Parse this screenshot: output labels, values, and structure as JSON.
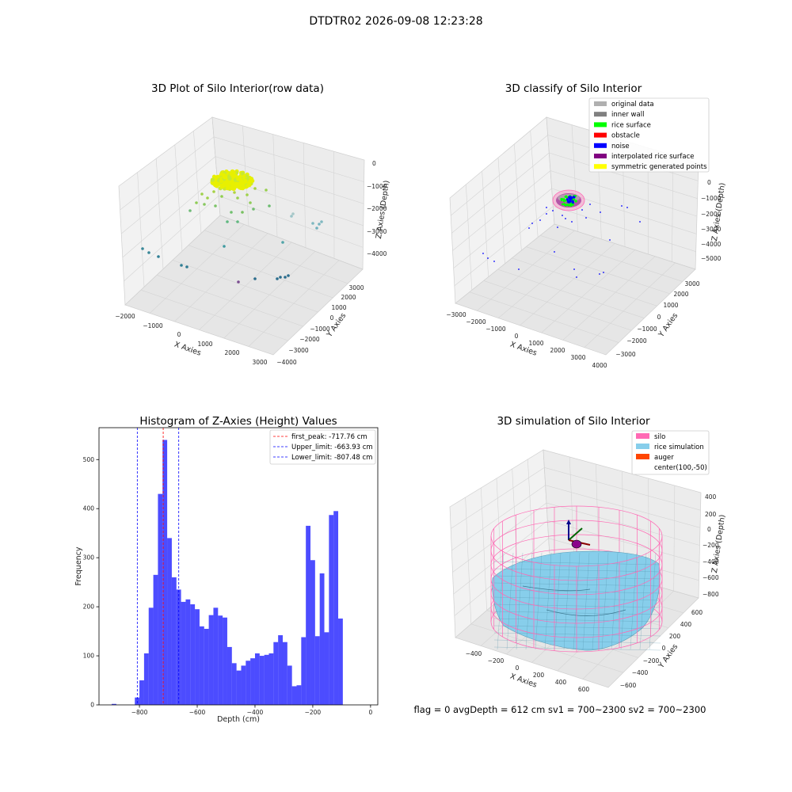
{
  "suptitle": "DTDTR02 2026-09-08 12:23:28",
  "footer": "flag = 0     avgDepth = 612 cm  sv1 = 700~2300  sv2 = 700~2300",
  "panels": {
    "raw": {
      "title": "3D Plot of Silo Interior(row data)",
      "xlabel": "X Axies",
      "ylabel": "Y Axies",
      "zlabel": "Z Axies (Depth)",
      "xticks": [
        "−2000",
        "−1000",
        "0",
        "1000",
        "2000",
        "3000"
      ],
      "yticks": [
        "−4000",
        "−3000",
        "−2000",
        "−1000",
        "0",
        "1000",
        "2000",
        "3000"
      ],
      "zticks": [
        "0",
        "−1000",
        "−2000",
        "−3000",
        "−4000"
      ]
    },
    "classify": {
      "title": "3D classify of Silo Interior",
      "xlabel": "X Axies",
      "ylabel": "Y Axies",
      "zlabel": "Z Axies (Depth)",
      "xticks": [
        "−3000",
        "−2000",
        "−1000",
        "0",
        "1000",
        "2000",
        "3000",
        "4000"
      ],
      "yticks": [
        "−3000",
        "−2000",
        "−1000",
        "0",
        "1000",
        "2000",
        "3000"
      ],
      "zticks": [
        "0",
        "−1000",
        "−2000",
        "−3000",
        "−4000",
        "−5000"
      ],
      "legend": [
        {
          "label": "original data",
          "color": "#b0b0b0"
        },
        {
          "label": "inner wall",
          "color": "#808080"
        },
        {
          "label": "rice surface",
          "color": "#00ff00"
        },
        {
          "label": "obstacle",
          "color": "#ff0000"
        },
        {
          "label": "noise",
          "color": "#0000ff"
        },
        {
          "label": "interpolated rice surface",
          "color": "#800080"
        },
        {
          "label": "symmetric generated points",
          "color": "#ffff00"
        }
      ]
    },
    "simulation": {
      "title": "3D simulation of Silo Interior",
      "xlabel": "X Axies",
      "ylabel": "Y Axies",
      "zlabel": "Z Axies (Depth)",
      "xticks": [
        "−400",
        "−200",
        "0",
        "200",
        "400",
        "600"
      ],
      "yticks": [
        "−600",
        "−400",
        "−200",
        "0",
        "200",
        "400",
        "600"
      ],
      "zticks": [
        "400",
        "200",
        "0",
        "−200",
        "−400",
        "−600",
        "−800"
      ],
      "legend": [
        {
          "label": "silo",
          "color": "#ff69b4"
        },
        {
          "label": "rice simulation",
          "color": "#87ceeb"
        },
        {
          "label": "auger",
          "color": "#ff4500"
        },
        {
          "label": "center(100,-50)",
          "color": ""
        }
      ]
    }
  },
  "chart_data": {
    "type": "bar",
    "title": "Histogram of Z-Axies (Height) Values",
    "xlabel": "Depth (cm)",
    "ylabel": "Frequency",
    "xlim": [
      -940,
      25
    ],
    "ylim": [
      0,
      565
    ],
    "xticks": [
      -800,
      -600,
      -400,
      -200,
      0
    ],
    "xtick_labels": [
      "−800",
      "−600",
      "−400",
      "−200",
      "0"
    ],
    "yticks": [
      0,
      100,
      200,
      300,
      400,
      500
    ],
    "bar_color": "#0000ff",
    "bin_width": 16,
    "bin_start": -896,
    "values": [
      2,
      0,
      0,
      0,
      0,
      15,
      50,
      105,
      198,
      265,
      430,
      540,
      340,
      260,
      235,
      210,
      215,
      205,
      195,
      160,
      155,
      183,
      198,
      182,
      178,
      118,
      85,
      70,
      80,
      90,
      95,
      105,
      100,
      102,
      105,
      128,
      142,
      128,
      80,
      38,
      40,
      138,
      365,
      295,
      140,
      268,
      148,
      387,
      395,
      176
    ],
    "lines": [
      {
        "label": "first_peak: -717.76 cm",
        "x": -717.76,
        "color": "#ff0000"
      },
      {
        "label": "Upper_limit: -663.93 cm",
        "x": -663.93,
        "color": "#0000ff"
      },
      {
        "label": "Lower_limit: -807.48 cm",
        "x": -807.48,
        "color": "#0000ff"
      }
    ]
  }
}
